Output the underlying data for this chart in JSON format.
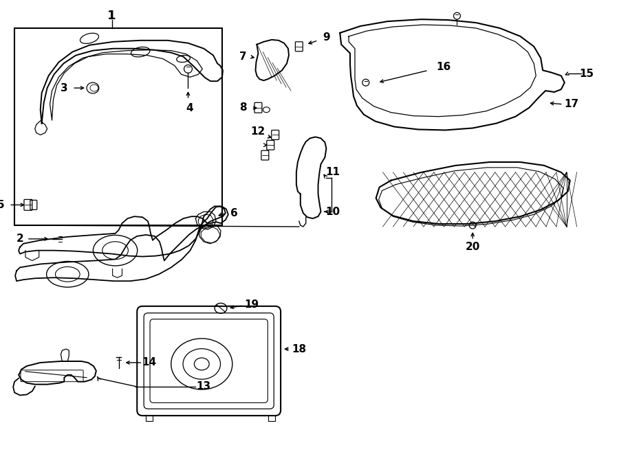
{
  "bg_color": "#ffffff",
  "line_color": "#000000",
  "lw": 1.4,
  "fig_width": 9.0,
  "fig_height": 6.61,
  "dpi": 100
}
